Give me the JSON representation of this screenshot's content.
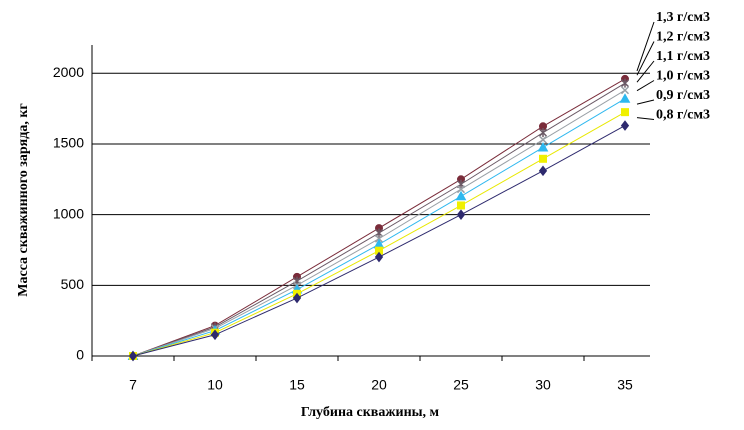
{
  "chart_data": {
    "type": "line",
    "x_label": "Глубина скважины, м",
    "y_label": "Масса скважинного заряда, кг",
    "categories": [
      "7",
      "10",
      "15",
      "20",
      "25",
      "30",
      "35"
    ],
    "ylim": [
      0,
      2200
    ],
    "yticks": [
      0,
      500,
      1000,
      1500,
      2000
    ],
    "grid": true,
    "series": [
      {
        "name": "1,3 г/см3",
        "color": "#7a2c3a",
        "marker": "circle",
        "values": [
          0,
          215,
          560,
          905,
          1250,
          1625,
          1960
        ]
      },
      {
        "name": "1,2 г/см3",
        "color": "#6b5a66",
        "marker": "star",
        "values": [
          0,
          205,
          530,
          870,
          1215,
          1580,
          1930
        ]
      },
      {
        "name": "1,1 г/см3",
        "color": "#9aa0a6",
        "marker": "cross",
        "values": [
          0,
          195,
          500,
          830,
          1180,
          1530,
          1880
        ]
      },
      {
        "name": "1,0 г/см3",
        "color": "#2fb8ef",
        "marker": "triangle",
        "values": [
          0,
          180,
          470,
          790,
          1130,
          1475,
          1820
        ]
      },
      {
        "name": "0,9 г/см3",
        "color": "#f0f000",
        "marker": "square",
        "values": [
          0,
          165,
          440,
          745,
          1065,
          1395,
          1725
        ]
      },
      {
        "name": "0,8 г/см3",
        "color": "#2e2a6e",
        "marker": "diamond",
        "values": [
          0,
          150,
          410,
          700,
          1000,
          1310,
          1630
        ]
      }
    ]
  }
}
